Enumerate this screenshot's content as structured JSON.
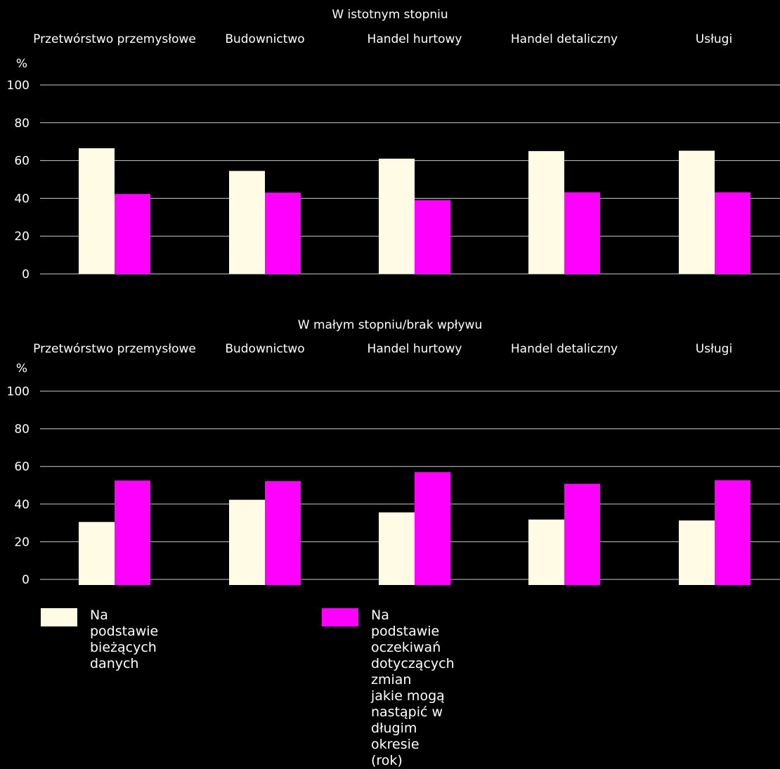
{
  "chart_data": [
    {
      "type": "bar",
      "title": "W istotnym stopniu",
      "unit_label": "%",
      "categories": [
        "Przetwórstwo przemysłowe",
        "Budownictwo",
        "Handel hurtowy",
        "Handel detaliczny",
        "Usługi"
      ],
      "series": [
        {
          "name": "Na podstawie bieżących danych",
          "color": "#fffbe5",
          "values": [
            66.5,
            54.5,
            61,
            65,
            65.2
          ]
        },
        {
          "name": "Na podstawie oczekiwań dotyczących zmian jakie mogą nastąpić w długim okresie (rok)",
          "color": "#ff00ff",
          "values": [
            42.3,
            43,
            39,
            43.2,
            43.2
          ]
        }
      ],
      "ylim": [
        0,
        100
      ],
      "yticks": [
        0,
        20,
        40,
        60,
        80,
        100
      ],
      "grid": true
    },
    {
      "type": "bar",
      "title": "W małym stopniu/brak wpływu",
      "unit_label": "%",
      "categories": [
        "Przetwórstwo przemysłowe",
        "Budownictwo",
        "Handel hurtowy",
        "Handel detaliczny",
        "Usługi"
      ],
      "series": [
        {
          "name": "Na podstawie bieżących danych",
          "color": "#fffbe5",
          "values": [
            30.5,
            42.3,
            35.6,
            31.8,
            31.3
          ]
        },
        {
          "name": "Na podstawie oczekiwań dotyczących zmian jakie mogą nastąpić w długim okresie (rok)",
          "color": "#ff00ff",
          "values": [
            52.5,
            52.2,
            57,
            50.8,
            52.7
          ]
        }
      ],
      "ylim": [
        0,
        100
      ],
      "yticks": [
        0,
        20,
        40,
        60,
        80,
        100
      ],
      "grid": true
    }
  ],
  "legend": {
    "items": [
      {
        "label_lines": [
          "Na podstawie bieżących danych"
        ],
        "color": "#fffbe5"
      },
      {
        "label_lines": [
          "Na podstawie oczekiwań dotyczących zmian",
          "jakie mogą nastąpić w długim okresie (rok)"
        ],
        "color": "#ff00ff"
      }
    ]
  }
}
